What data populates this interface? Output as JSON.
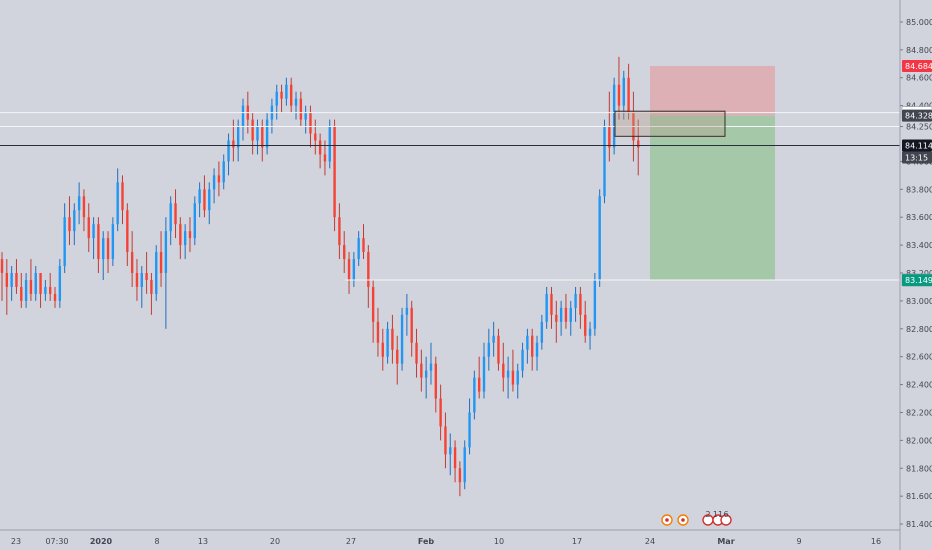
{
  "chart_data": {
    "type": "candlestick",
    "title": "",
    "xlabel": "",
    "ylabel": "",
    "ylim": [
      81.3,
      85.1
    ],
    "grid": false,
    "colors": {
      "background": "#d1d4dc",
      "up": "#2196f3",
      "down": "#f44336",
      "wick_up": "#1e6fc2",
      "wick_down": "#c23a33",
      "neutral_wick": "#3a3a3a",
      "target_zone": "#9fc7a2",
      "stop_zone": "#dea9ae",
      "sl_badge": "#f23645",
      "tp_badge": "#089981"
    },
    "y_ticks": [
      "85.000",
      "84.800",
      "84.600",
      "84.400",
      "84.250",
      "84.000",
      "83.800",
      "83.600",
      "83.400",
      "83.200",
      "83.000",
      "82.800",
      "82.600",
      "82.400",
      "82.200",
      "82.000",
      "81.800",
      "81.600",
      "81.400"
    ],
    "y_tick_values": [
      85.0,
      84.8,
      84.6,
      84.4,
      84.25,
      84.0,
      83.8,
      83.6,
      83.4,
      83.2,
      83.0,
      82.8,
      82.6,
      82.4,
      82.2,
      82.0,
      81.8,
      81.6,
      81.4
    ],
    "x_ticks": [
      "23",
      "07:30",
      "2020",
      "8",
      "13",
      "20",
      "27",
      "Feb",
      "10",
      "17",
      "24",
      "Mar",
      "9",
      "16"
    ],
    "x_tick_bold": [
      "2020",
      "Feb",
      "Mar"
    ],
    "price_badges": [
      {
        "label": "84.684",
        "value": 84.684,
        "style": "sl"
      },
      {
        "label": "84.350",
        "value": 84.35,
        "style": "plain"
      },
      {
        "label": "84.328",
        "value": 84.328,
        "style": "dark"
      },
      {
        "label": "84.114",
        "value": 84.114,
        "style": "black"
      },
      {
        "label": "13:15",
        "value": 84.0,
        "style": "dark"
      },
      {
        "label": "83.150",
        "value": 83.15,
        "style": "plain"
      },
      {
        "label": "83.149",
        "value": 83.149,
        "style": "tp"
      }
    ],
    "horizontal_lines": [
      {
        "name": "resistance-line",
        "value": 84.35
      },
      {
        "name": "entry-line",
        "value": 84.25
      },
      {
        "name": "current-price-line",
        "value": 84.114
      },
      {
        "name": "support-line",
        "value": 83.15
      }
    ],
    "position": {
      "entry": 84.328,
      "stop": 84.684,
      "target": 83.149
    },
    "zone_box": {
      "top": 84.36,
      "bottom": 84.18
    },
    "event_markers": [
      {
        "label": "",
        "kind": "flag"
      },
      {
        "label": "",
        "kind": "flag"
      },
      {
        "label": "2",
        "kind": "count"
      },
      {
        "label": "11",
        "kind": "count"
      },
      {
        "label": "6",
        "kind": "count"
      }
    ],
    "candles": [
      [
        83.3,
        83.35,
        83.0,
        83.2
      ],
      [
        83.2,
        83.3,
        82.9,
        83.1
      ],
      [
        83.1,
        83.25,
        83.0,
        83.2
      ],
      [
        83.2,
        83.3,
        83.05,
        83.1
      ],
      [
        83.1,
        83.2,
        82.95,
        83.0
      ],
      [
        83.0,
        83.2,
        82.95,
        83.15
      ],
      [
        83.15,
        83.3,
        83.0,
        83.05
      ],
      [
        83.05,
        83.25,
        83.0,
        83.2
      ],
      [
        83.2,
        83.2,
        82.95,
        83.05
      ],
      [
        83.05,
        83.15,
        83.0,
        83.1
      ],
      [
        83.1,
        83.2,
        83.0,
        83.05
      ],
      [
        83.05,
        83.1,
        82.95,
        83.0
      ],
      [
        83.0,
        83.3,
        82.95,
        83.25
      ],
      [
        83.25,
        83.7,
        83.2,
        83.6
      ],
      [
        83.6,
        83.75,
        83.4,
        83.5
      ],
      [
        83.5,
        83.7,
        83.4,
        83.65
      ],
      [
        83.65,
        83.85,
        83.55,
        83.75
      ],
      [
        83.75,
        83.8,
        83.5,
        83.6
      ],
      [
        83.6,
        83.7,
        83.35,
        83.45
      ],
      [
        83.45,
        83.6,
        83.3,
        83.55
      ],
      [
        83.55,
        83.6,
        83.2,
        83.3
      ],
      [
        83.3,
        83.5,
        83.15,
        83.45
      ],
      [
        83.45,
        83.5,
        83.2,
        83.3
      ],
      [
        83.3,
        83.6,
        83.25,
        83.55
      ],
      [
        83.55,
        83.95,
        83.5,
        83.85
      ],
      [
        83.85,
        83.9,
        83.55,
        83.65
      ],
      [
        83.65,
        83.7,
        83.25,
        83.35
      ],
      [
        83.35,
        83.5,
        83.1,
        83.2
      ],
      [
        83.2,
        83.3,
        83.0,
        83.1
      ],
      [
        83.1,
        83.25,
        82.95,
        83.2
      ],
      [
        83.2,
        83.35,
        83.05,
        83.15
      ],
      [
        83.15,
        83.2,
        82.9,
        83.05
      ],
      [
        83.05,
        83.4,
        83.0,
        83.35
      ],
      [
        83.35,
        83.5,
        83.1,
        83.2
      ],
      [
        83.2,
        83.6,
        82.8,
        83.5
      ],
      [
        83.5,
        83.75,
        83.4,
        83.7
      ],
      [
        83.7,
        83.8,
        83.45,
        83.55
      ],
      [
        83.55,
        83.6,
        83.3,
        83.4
      ],
      [
        83.4,
        83.55,
        83.3,
        83.5
      ],
      [
        83.5,
        83.6,
        83.35,
        83.45
      ],
      [
        83.45,
        83.75,
        83.4,
        83.7
      ],
      [
        83.7,
        83.85,
        83.6,
        83.8
      ],
      [
        83.8,
        83.9,
        83.6,
        83.65
      ],
      [
        83.65,
        83.85,
        83.55,
        83.8
      ],
      [
        83.8,
        83.95,
        83.7,
        83.9
      ],
      [
        83.9,
        84.0,
        83.75,
        83.85
      ],
      [
        83.85,
        84.05,
        83.8,
        84.0
      ],
      [
        84.0,
        84.2,
        83.9,
        84.15
      ],
      [
        84.15,
        84.3,
        84.0,
        84.1
      ],
      [
        84.1,
        84.3,
        84.0,
        84.25
      ],
      [
        84.25,
        84.45,
        84.15,
        84.4
      ],
      [
        84.4,
        84.5,
        84.2,
        84.3
      ],
      [
        84.3,
        84.35,
        84.05,
        84.15
      ],
      [
        84.15,
        84.3,
        84.05,
        84.25
      ],
      [
        84.25,
        84.3,
        84.0,
        84.1
      ],
      [
        84.1,
        84.35,
        84.05,
        84.3
      ],
      [
        84.3,
        84.45,
        84.2,
        84.4
      ],
      [
        84.4,
        84.55,
        84.3,
        84.5
      ],
      [
        84.5,
        84.55,
        84.35,
        84.45
      ],
      [
        84.45,
        84.6,
        84.4,
        84.55
      ],
      [
        84.55,
        84.6,
        84.35,
        84.4
      ],
      [
        84.4,
        84.5,
        84.3,
        84.45
      ],
      [
        84.45,
        84.5,
        84.25,
        84.3
      ],
      [
        84.3,
        84.4,
        84.2,
        84.35
      ],
      [
        84.35,
        84.4,
        84.1,
        84.2
      ],
      [
        84.2,
        84.3,
        84.05,
        84.15
      ],
      [
        84.15,
        84.2,
        83.95,
        84.05
      ],
      [
        84.05,
        84.15,
        83.9,
        84.0
      ],
      [
        84.0,
        84.3,
        83.95,
        84.25
      ],
      [
        84.25,
        84.3,
        83.5,
        83.6
      ],
      [
        83.6,
        83.7,
        83.3,
        83.4
      ],
      [
        83.4,
        83.5,
        83.2,
        83.3
      ],
      [
        83.3,
        83.35,
        83.05,
        83.15
      ],
      [
        83.15,
        83.35,
        83.1,
        83.3
      ],
      [
        83.3,
        83.5,
        83.25,
        83.45
      ],
      [
        83.45,
        83.55,
        83.3,
        83.35
      ],
      [
        83.35,
        83.4,
        82.95,
        83.1
      ],
      [
        83.1,
        83.15,
        82.7,
        82.85
      ],
      [
        82.85,
        82.95,
        82.6,
        82.7
      ],
      [
        82.7,
        82.8,
        82.5,
        82.6
      ],
      [
        82.6,
        82.85,
        82.55,
        82.8
      ],
      [
        82.8,
        82.9,
        82.55,
        82.65
      ],
      [
        82.65,
        82.75,
        82.4,
        82.55
      ],
      [
        82.55,
        82.95,
        82.5,
        82.9
      ],
      [
        82.9,
        83.05,
        82.75,
        82.95
      ],
      [
        82.95,
        83.0,
        82.6,
        82.7
      ],
      [
        82.7,
        82.8,
        82.45,
        82.55
      ],
      [
        82.55,
        82.65,
        82.35,
        82.45
      ],
      [
        82.45,
        82.6,
        82.3,
        82.5
      ],
      [
        82.5,
        82.7,
        82.4,
        82.55
      ],
      [
        82.55,
        82.6,
        82.2,
        82.3
      ],
      [
        82.3,
        82.4,
        82.0,
        82.1
      ],
      [
        82.1,
        82.2,
        81.8,
        81.9
      ],
      [
        81.9,
        82.05,
        81.75,
        81.95
      ],
      [
        81.95,
        82.0,
        81.7,
        81.8
      ],
      [
        81.8,
        81.85,
        81.6,
        81.7
      ],
      [
        81.7,
        82.0,
        81.65,
        81.95
      ],
      [
        81.95,
        82.3,
        81.9,
        82.2
      ],
      [
        82.2,
        82.5,
        82.15,
        82.45
      ],
      [
        82.45,
        82.6,
        82.3,
        82.35
      ],
      [
        82.35,
        82.7,
        82.3,
        82.6
      ],
      [
        82.6,
        82.8,
        82.5,
        82.7
      ],
      [
        82.7,
        82.85,
        82.6,
        82.75
      ],
      [
        82.75,
        82.8,
        82.5,
        82.55
      ],
      [
        82.55,
        82.7,
        82.35,
        82.45
      ],
      [
        82.45,
        82.6,
        82.3,
        82.5
      ],
      [
        82.5,
        82.65,
        82.35,
        82.4
      ],
      [
        82.4,
        82.55,
        82.3,
        82.5
      ],
      [
        82.5,
        82.7,
        82.45,
        82.65
      ],
      [
        82.65,
        82.8,
        82.55,
        82.75
      ],
      [
        82.75,
        82.8,
        82.5,
        82.6
      ],
      [
        82.6,
        82.75,
        82.5,
        82.7
      ],
      [
        82.7,
        82.9,
        82.65,
        82.85
      ],
      [
        82.85,
        83.1,
        82.8,
        83.05
      ],
      [
        83.05,
        83.1,
        82.8,
        82.9
      ],
      [
        82.9,
        83.0,
        82.7,
        82.85
      ],
      [
        82.85,
        83.0,
        82.75,
        82.95
      ],
      [
        82.95,
        83.05,
        82.8,
        82.85
      ],
      [
        82.85,
        83.0,
        82.75,
        82.95
      ],
      [
        82.95,
        83.1,
        82.85,
        83.05
      ],
      [
        83.05,
        83.1,
        82.8,
        82.9
      ],
      [
        82.9,
        83.0,
        82.7,
        82.75
      ],
      [
        82.75,
        82.85,
        82.65,
        82.8
      ],
      [
        82.8,
        83.2,
        82.75,
        83.15
      ],
      [
        83.15,
        83.8,
        83.1,
        83.75
      ],
      [
        83.75,
        84.3,
        83.7,
        84.25
      ],
      [
        84.25,
        84.5,
        84.0,
        84.1
      ],
      [
        84.1,
        84.6,
        84.05,
        84.55
      ],
      [
        84.55,
        84.75,
        84.3,
        84.4
      ],
      [
        84.4,
        84.65,
        84.3,
        84.6
      ],
      [
        84.6,
        84.7,
        84.3,
        84.35
      ],
      [
        84.35,
        84.5,
        84.0,
        84.15
      ],
      [
        84.15,
        84.3,
        83.9,
        84.1
      ]
    ]
  }
}
